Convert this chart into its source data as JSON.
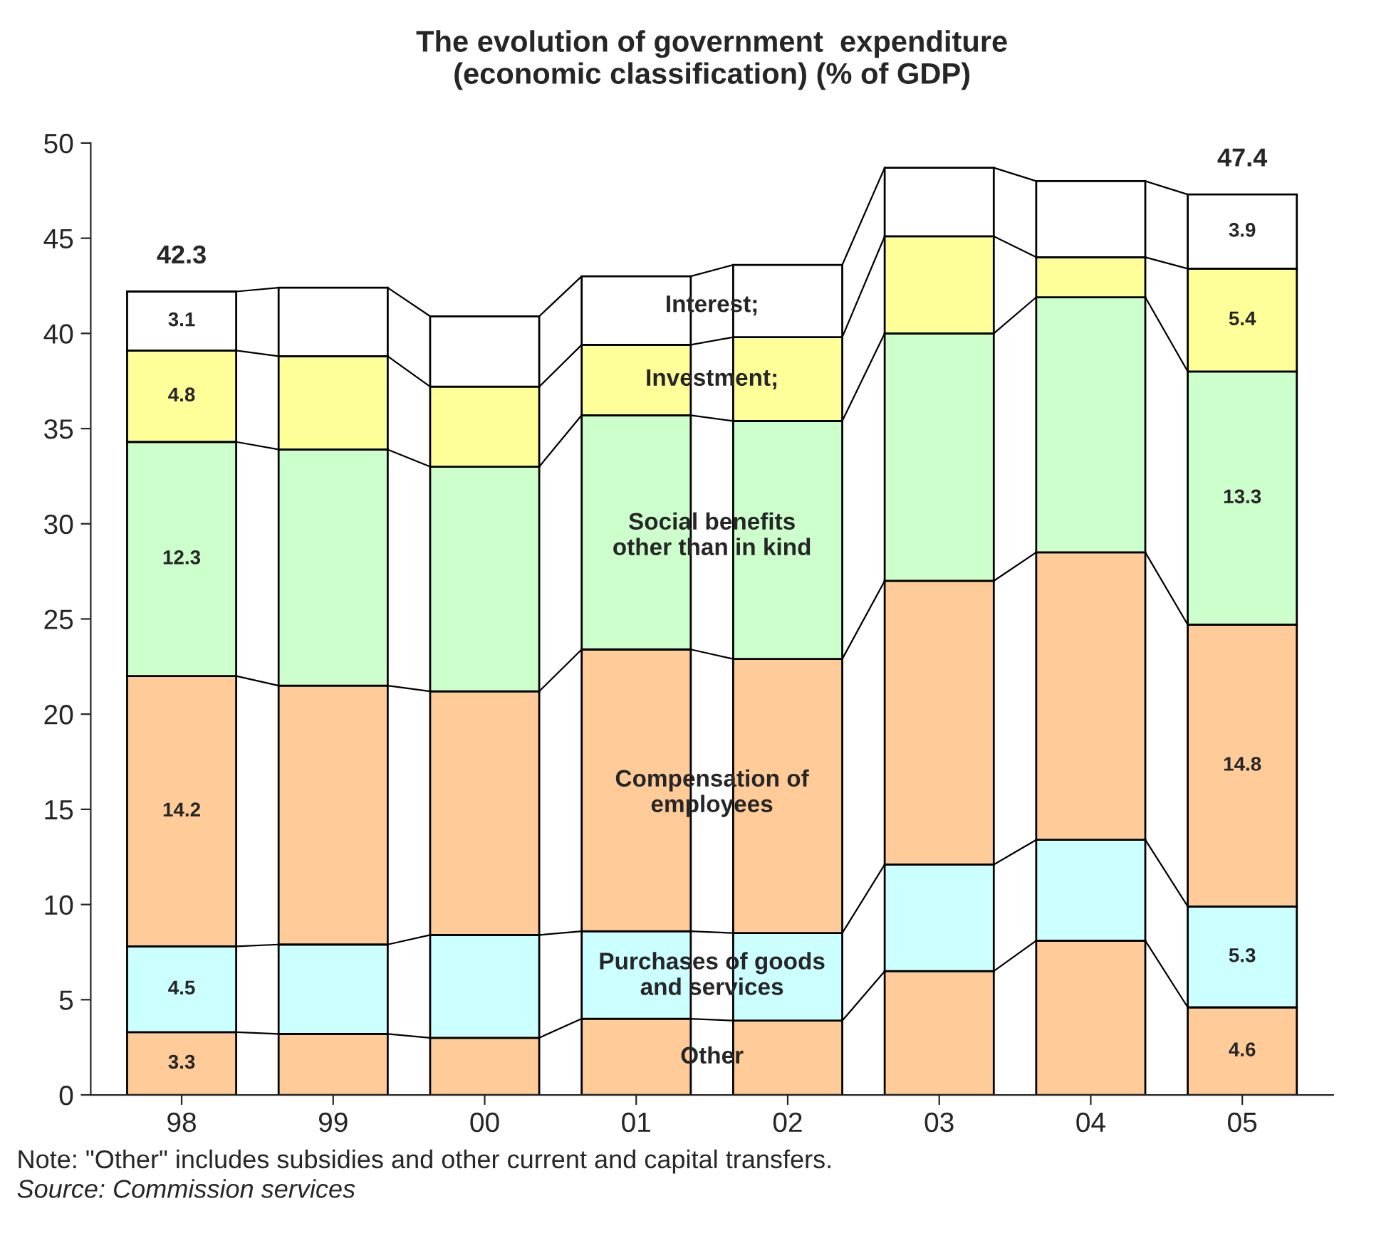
{
  "chart_data": {
    "type": "bar",
    "stacked": true,
    "title": "The evolution of government  expenditure\n(economic classification) (% of GDP)",
    "categories": [
      "98",
      "99",
      "00",
      "01",
      "02",
      "03",
      "04",
      "05"
    ],
    "series": [
      {
        "name": "Other",
        "color": "#ffcc99",
        "values": [
          3.3,
          3.2,
          3.0,
          4.0,
          3.9,
          6.5,
          8.1,
          4.6
        ],
        "value_labels": [
          "3.3",
          null,
          null,
          null,
          null,
          null,
          null,
          "4.6"
        ]
      },
      {
        "name": "Purchases of goods\nand services",
        "color": "#ccffff",
        "values": [
          4.5,
          4.7,
          5.4,
          4.6,
          4.6,
          5.6,
          5.3,
          5.3
        ],
        "value_labels": [
          "4.5",
          null,
          null,
          null,
          null,
          null,
          null,
          "5.3"
        ]
      },
      {
        "name": "Compensation of\nemployees",
        "color": "#ffcc99",
        "values": [
          14.2,
          13.6,
          12.8,
          14.8,
          14.4,
          14.9,
          15.1,
          14.8
        ],
        "value_labels": [
          "14.2",
          null,
          null,
          null,
          null,
          null,
          null,
          "14.8"
        ]
      },
      {
        "name": "Social benefits\nother than in kind",
        "color": "#ccffcc",
        "values": [
          12.3,
          12.4,
          11.8,
          12.3,
          12.5,
          13.0,
          13.4,
          13.3
        ],
        "value_labels": [
          "12.3",
          null,
          null,
          null,
          null,
          null,
          null,
          "13.3"
        ]
      },
      {
        "name": "Investment;",
        "color": "#ffff99",
        "values": [
          4.8,
          4.9,
          4.2,
          3.7,
          4.4,
          5.1,
          2.1,
          5.4
        ],
        "value_labels": [
          "4.8",
          null,
          null,
          null,
          null,
          null,
          null,
          "5.4"
        ]
      },
      {
        "name": "Interest;",
        "color": "#ffffff",
        "values": [
          3.1,
          3.6,
          3.7,
          3.6,
          3.8,
          3.6,
          4.0,
          3.9
        ],
        "value_labels": [
          "3.1",
          null,
          null,
          null,
          null,
          null,
          null,
          "3.9"
        ]
      }
    ],
    "totals": [
      "42.3",
      null,
      null,
      null,
      null,
      null,
      null,
      "47.4"
    ],
    "ylim": [
      0,
      50
    ],
    "yticks": [
      0,
      5,
      10,
      15,
      20,
      25,
      30,
      35,
      40,
      45,
      50
    ],
    "grid": false,
    "legend": "center",
    "annotations": [
      "Note: \"Other\" includes subsidies and other current and capital transfers.",
      "Source: Commission services"
    ]
  }
}
